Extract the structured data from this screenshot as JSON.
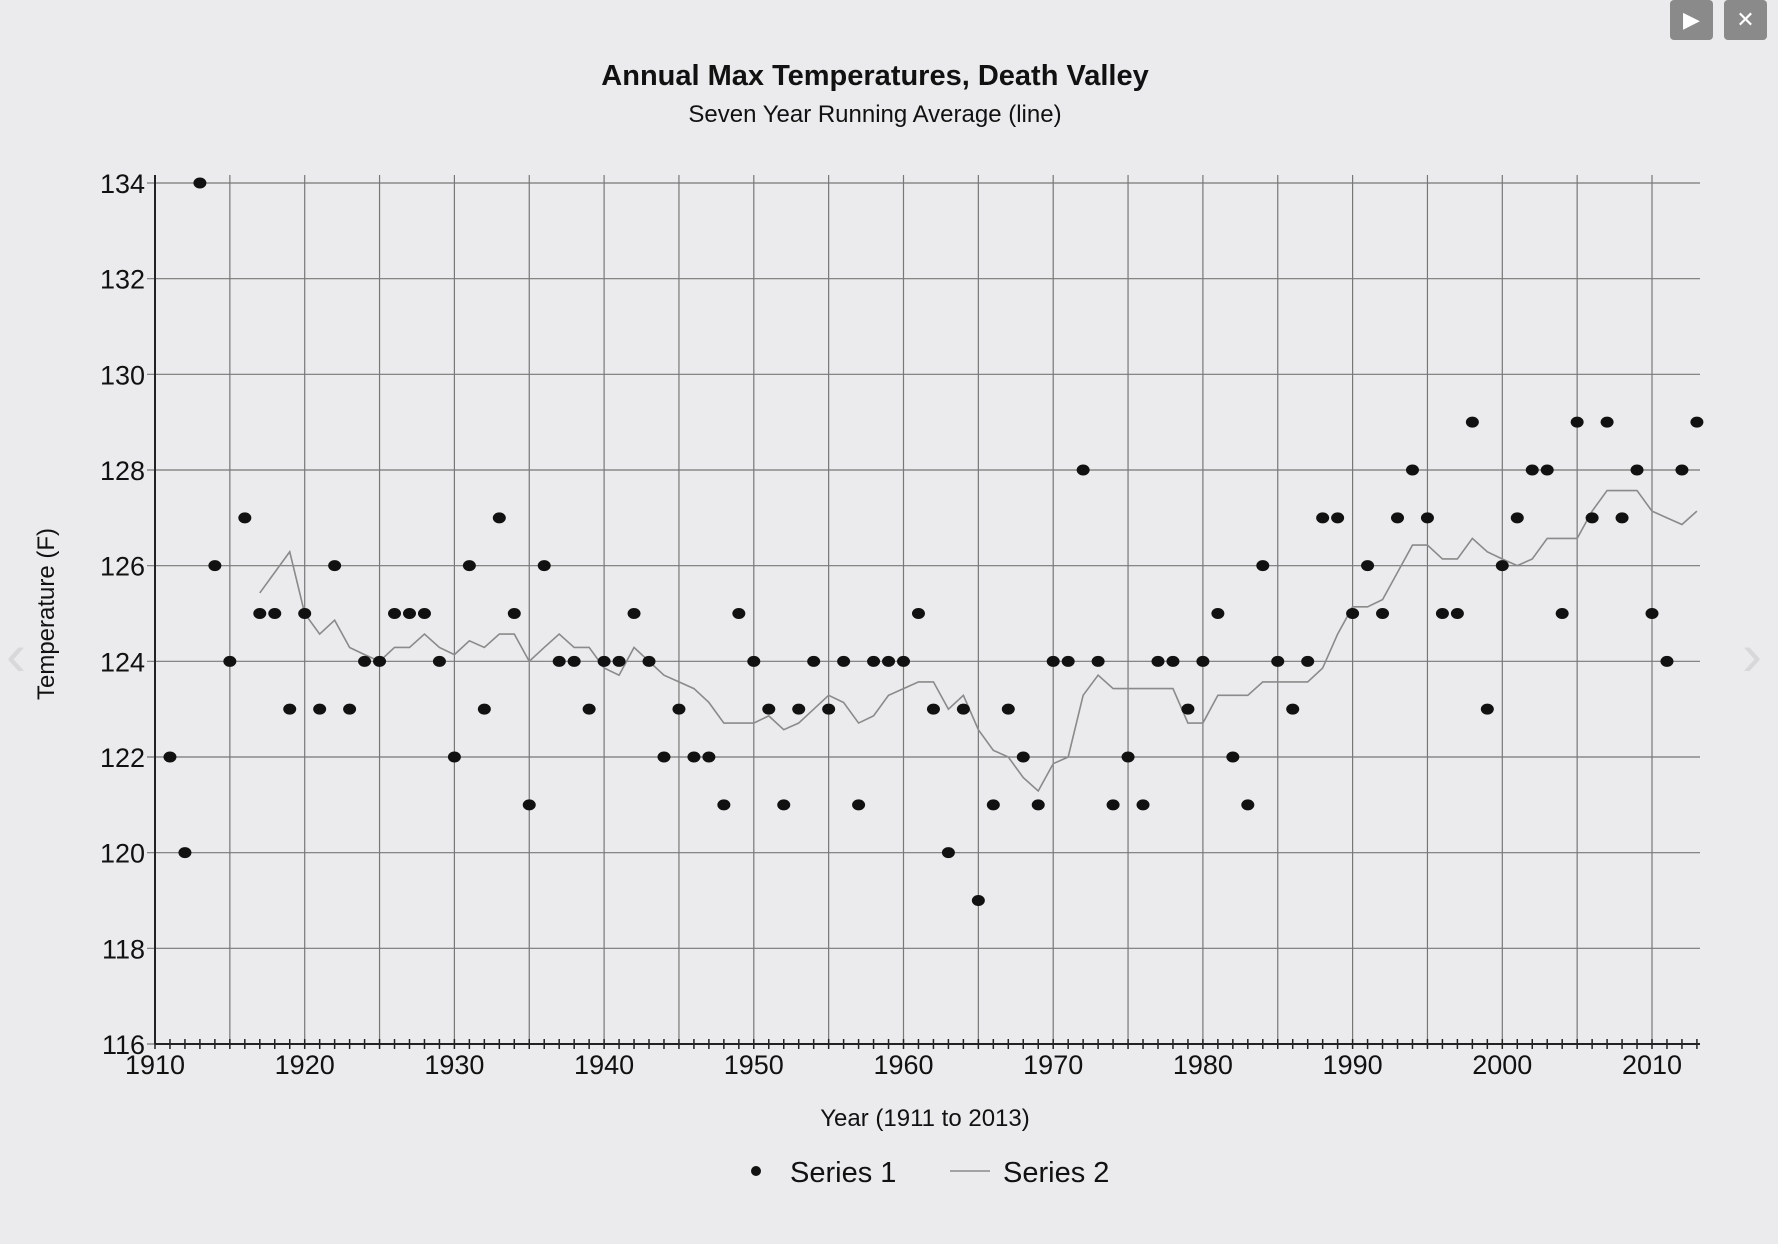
{
  "window": {
    "play_label": "▶",
    "close_label": "✕",
    "prev_label": "‹",
    "next_label": "›"
  },
  "chart_data": {
    "type": "scatter",
    "title": "Annual Max Temperatures, Death Valley",
    "subtitle": "Seven Year Running Average (line)",
    "xlabel": "Year (1911 to 2013)",
    "ylabel": "Temperature (F)",
    "xlim": [
      1910,
      2013
    ],
    "ylim": [
      116,
      134
    ],
    "xticks": [
      1910,
      1920,
      1930,
      1940,
      1950,
      1960,
      1970,
      1980,
      1990,
      2000,
      2010
    ],
    "yticks": [
      116,
      118,
      120,
      122,
      124,
      126,
      128,
      130,
      132,
      134
    ],
    "grid": true,
    "legend_placement": "bottom-center",
    "series": [
      {
        "name": "Series 1",
        "kind": "points",
        "x_start": 1911,
        "values": [
          122,
          120,
          134,
          126,
          124,
          127,
          125,
          125,
          123,
          125,
          123,
          126,
          123,
          124,
          124,
          125,
          125,
          125,
          124,
          122,
          126,
          123,
          127,
          125,
          121,
          126,
          124,
          124,
          123,
          124,
          124,
          125,
          124,
          122,
          123,
          122,
          122,
          121,
          125,
          124,
          123,
          121,
          123,
          124,
          123,
          124,
          121,
          124,
          124,
          124,
          125,
          123,
          120,
          123,
          119,
          121,
          123,
          122,
          121,
          124,
          124,
          128,
          124,
          121,
          122,
          121,
          124,
          124,
          123,
          124,
          125,
          122,
          121,
          126,
          124,
          123,
          124,
          127,
          127,
          125,
          126,
          125,
          127,
          128,
          127,
          125,
          125,
          129,
          123,
          126,
          127,
          128,
          128,
          125,
          129,
          127,
          129,
          127,
          128,
          125,
          124,
          128,
          129
        ]
      },
      {
        "name": "Series 2",
        "kind": "line",
        "x_start": 1917,
        "values": [
          125.43,
          125.86,
          126.29,
          125.0,
          124.57,
          124.86,
          124.29,
          124.14,
          124.0,
          124.29,
          124.29,
          124.57,
          124.29,
          124.14,
          124.43,
          124.29,
          124.57,
          124.57,
          124.0,
          124.29,
          124.57,
          124.29,
          124.29,
          123.86,
          123.71,
          124.29,
          124.0,
          123.71,
          123.57,
          123.43,
          123.14,
          122.71,
          122.71,
          122.71,
          122.86,
          122.57,
          122.71,
          123.0,
          123.29,
          123.14,
          122.71,
          122.86,
          123.29,
          123.43,
          123.57,
          123.57,
          123.0,
          123.29,
          122.57,
          122.14,
          122.0,
          121.57,
          121.29,
          121.86,
          122.0,
          123.29,
          123.71,
          123.43,
          123.43,
          123.43,
          123.43,
          123.43,
          122.71,
          122.71,
          123.29,
          123.29,
          123.29,
          123.57,
          123.57,
          123.57,
          123.57,
          123.86,
          124.57,
          125.14,
          125.14,
          125.29,
          125.86,
          126.43,
          126.43,
          126.14,
          126.14,
          126.57,
          126.29,
          126.14,
          126.0,
          126.14,
          126.57,
          126.57,
          126.57,
          127.14,
          127.57,
          127.57,
          127.57,
          127.14,
          127.0,
          126.86,
          127.14
        ]
      }
    ],
    "colors": {
      "points": "#111111",
      "line": "#8a8a8a",
      "grid": "#777777"
    }
  }
}
